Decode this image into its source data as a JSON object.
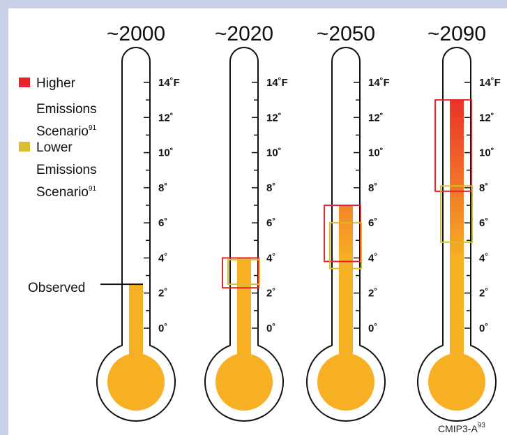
{
  "chart_data": {
    "type": "range",
    "unit": "°F",
    "ylim": [
      0,
      14
    ],
    "ticks": [
      "0˚",
      "2˚",
      "4˚",
      "6˚",
      "8˚",
      "10˚",
      "12˚",
      "14˚F"
    ],
    "periods": [
      {
        "label": "~2000",
        "observed": 2.5
      },
      {
        "label": "~2020",
        "fill": 4.0,
        "higher": [
          2.3,
          4.0
        ],
        "lower": [
          2.5,
          3.9
        ]
      },
      {
        "label": "~2050",
        "fill": 7.0,
        "higher": [
          3.8,
          7.0
        ],
        "lower": [
          3.4,
          6.0
        ]
      },
      {
        "label": "~2090",
        "fill": 13.0,
        "higher": [
          7.8,
          13.0
        ],
        "lower": [
          4.9,
          8.1
        ]
      }
    ],
    "legend": [
      {
        "line1": "Higher",
        "line2": "Emissions",
        "line3": "Scenario",
        "sup": "91",
        "color": "#e8242a"
      },
      {
        "line1": "Lower",
        "line2": "Emissions",
        "line3": "Scenario",
        "sup": "91",
        "color": "#d9be32"
      }
    ],
    "observed_label": "Observed",
    "colors": {
      "fill": "#f7b024",
      "fill_hot": "#e8242a",
      "higher": "#e8242a",
      "lower": "#d9be32"
    }
  },
  "source": {
    "text": "CMIP3-A",
    "sup": "93"
  }
}
